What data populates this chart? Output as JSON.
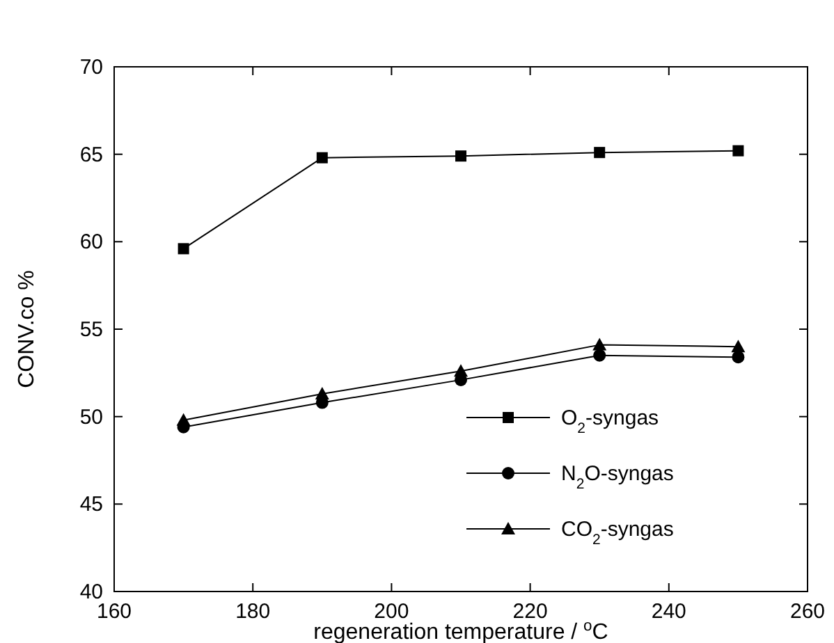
{
  "chart_data": {
    "type": "line",
    "xlabel": "regeneration temperature  / $^{o}$C",
    "ylabel": "CONV.co %",
    "x": [
      170,
      190,
      210,
      230,
      250
    ],
    "series": [
      {
        "name": "O$_{2}$-syngas",
        "color": "#000000",
        "marker": "square",
        "values": [
          59.6,
          64.8,
          64.9,
          65.1,
          65.2
        ]
      },
      {
        "name": "N$_{2}$O-syngas",
        "color": "#000000",
        "marker": "circle",
        "values": [
          49.4,
          50.8,
          52.1,
          53.5,
          53.4
        ]
      },
      {
        "name": "CO$_{2}$-syngas",
        "color": "#000000",
        "marker": "triangle",
        "values": [
          49.8,
          51.3,
          52.6,
          54.1,
          54.0
        ]
      }
    ],
    "xlim": [
      160,
      260
    ],
    "xticks": [
      160,
      180,
      200,
      220,
      240,
      260
    ],
    "ylim": [
      40,
      70
    ],
    "yticks": [
      40,
      45,
      50,
      55,
      60,
      65,
      70
    ],
    "grid": false,
    "legend": "bottom right",
    "line_style": "solid"
  }
}
